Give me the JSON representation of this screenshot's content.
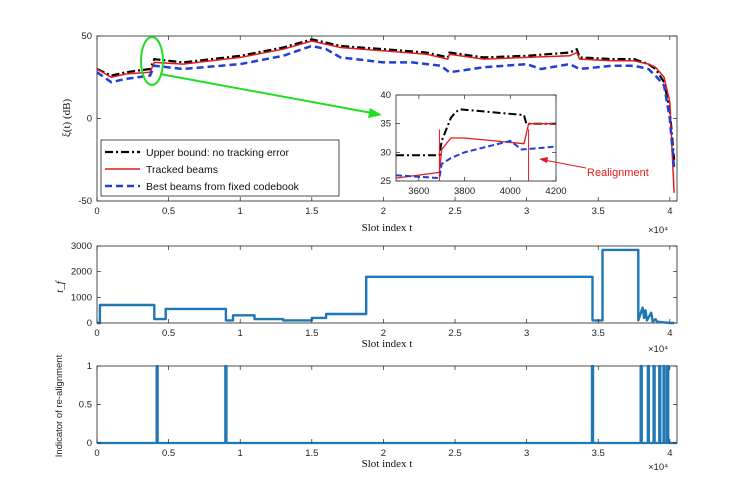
{
  "chart_data": [
    {
      "type": "line",
      "ylabel": "ξ(t) (dB)",
      "xlabel": "Slot index t",
      "x_exponent": "×10⁴",
      "xlim": [
        0,
        40500
      ],
      "ylim": [
        -50,
        50
      ],
      "xticks": [
        0,
        5000,
        10000,
        15000,
        20000,
        25000,
        30000,
        35000,
        40000
      ],
      "xtick_labels": [
        "0",
        "0.5",
        "1",
        "1.5",
        "2",
        "2.5",
        "3",
        "3.5",
        "4"
      ],
      "yticks": [
        -50,
        0,
        50
      ],
      "legend": [
        "Upper bound: no tracking error",
        "Tracked beams",
        "Best beams from fixed codebook"
      ],
      "series": [
        {
          "name": "Upper bound: no tracking error",
          "color": "#000000",
          "style": "dashdot",
          "x": [
            0,
            1000,
            2000,
            3700,
            4000,
            6000,
            10000,
            13000,
            15000,
            17000,
            20000,
            23000,
            24500,
            24600,
            27000,
            30000,
            33000,
            33500,
            33700,
            36000,
            37500,
            38500,
            39000,
            39600,
            40000,
            40300
          ],
          "y": [
            30,
            26,
            28,
            30,
            36,
            34,
            38,
            43,
            48,
            44,
            42,
            40,
            37,
            40,
            37,
            38,
            40,
            42,
            37,
            36,
            36,
            33,
            30,
            22,
            5,
            -25
          ]
        },
        {
          "name": "Tracked beams",
          "color": "#e41a1c",
          "style": "solid",
          "x": [
            0,
            1000,
            2000,
            3700,
            4000,
            6000,
            10000,
            13000,
            15000,
            17000,
            20000,
            23000,
            24500,
            24600,
            27000,
            30000,
            33000,
            33500,
            33700,
            36000,
            37500,
            38500,
            39000,
            39600,
            40000,
            40300
          ],
          "y": [
            30,
            25,
            27,
            28,
            34,
            33,
            37,
            42,
            47,
            43,
            41,
            39,
            36,
            39,
            36,
            37,
            38,
            40,
            36,
            35,
            35,
            33,
            31,
            25,
            10,
            -45
          ]
        },
        {
          "name": "Best beams from fixed codebook",
          "color": "#1f3fd6",
          "style": "dashed",
          "x": [
            0,
            1000,
            2000,
            3700,
            4000,
            6000,
            10000,
            13000,
            15000,
            16000,
            17000,
            20000,
            22000,
            24000,
            24600,
            27000,
            30000,
            31000,
            33000,
            33700,
            36000,
            37500,
            38500,
            39000,
            39600,
            40000,
            40300
          ],
          "y": [
            28,
            22,
            24,
            26,
            32,
            30,
            33,
            38,
            44,
            42,
            37,
            34,
            34,
            32,
            28,
            31,
            33,
            30,
            33,
            30,
            32,
            32,
            30,
            26,
            20,
            0,
            -30
          ]
        }
      ],
      "inset": {
        "xlim": [
          3500,
          4200
        ],
        "ylim": [
          25,
          40
        ],
        "xticks": [
          3600,
          3800,
          4000,
          4200
        ],
        "xtick_labels": [
          "3600",
          "3800",
          "4000",
          "4200"
        ],
        "yticks": [
          25,
          30,
          35,
          40
        ],
        "ytick_labels": [
          "25",
          "30",
          "35",
          "40"
        ],
        "annotation": "Realignment",
        "series": [
          {
            "name": "Upper bound",
            "x": [
              3500,
              3690,
              3700,
              3720,
              3740,
              3760,
              3780,
              4060,
              4070,
              4200
            ],
            "y": [
              29.5,
              29.5,
              32,
              34,
              36,
              37,
              37.5,
              36.5,
              35,
              35
            ]
          },
          {
            "name": "Tracked",
            "x": [
              3500,
              3690,
              3700,
              3740,
              3800,
              4060,
              4080,
              4200
            ],
            "y": [
              25.5,
              26.5,
              30.5,
              32.5,
              32.5,
              31.5,
              35,
              35
            ]
          },
          {
            "name": "Fixed codebook",
            "x": [
              3500,
              3690,
              3700,
              3740,
              3800,
              3900,
              4000,
              4050,
              4200
            ],
            "y": [
              26,
              25.5,
              28,
              29,
              30,
              31,
              32,
              30.5,
              31
            ]
          }
        ]
      }
    },
    {
      "type": "line",
      "ylabel": "t_f",
      "xlabel": "Slot index t",
      "x_exponent": "×10⁴",
      "xlim": [
        0,
        40500
      ],
      "ylim": [
        0,
        3000
      ],
      "yticks": [
        0,
        1000,
        2000,
        3000
      ],
      "ytick_labels": [
        "0",
        "1000",
        "2000",
        "3000"
      ],
      "xticks": [
        0,
        5000,
        10000,
        15000,
        20000,
        25000,
        30000,
        35000,
        40000
      ],
      "xtick_labels": [
        "0",
        "0.5",
        "1",
        "1.5",
        "2",
        "2.5",
        "3",
        "3.5",
        "4"
      ],
      "series": [
        {
          "name": "t_f",
          "color": "#1f77b4",
          "x": [
            0,
            200,
            200,
            4000,
            4000,
            4800,
            4800,
            9000,
            9000,
            9500,
            9500,
            11000,
            11000,
            13000,
            13000,
            15000,
            15000,
            16000,
            16000,
            18800,
            18800,
            34600,
            34600,
            35300,
            35300,
            37800,
            37800,
            38100,
            38200,
            38300,
            38400,
            38700,
            38800,
            39000,
            39100,
            40000,
            40300
          ],
          "y": [
            0,
            0,
            700,
            700,
            150,
            150,
            550,
            550,
            100,
            100,
            300,
            300,
            150,
            150,
            100,
            100,
            200,
            200,
            350,
            350,
            1800,
            1800,
            100,
            100,
            2850,
            2850,
            100,
            600,
            200,
            500,
            100,
            400,
            50,
            150,
            50,
            0,
            0
          ]
        }
      ]
    },
    {
      "type": "line",
      "ylabel": "Indicator of re-alignment",
      "xlabel": "Slot index t",
      "x_exponent": "×10⁴",
      "xlim": [
        0,
        40500
      ],
      "ylim": [
        0,
        1
      ],
      "yticks": [
        0,
        0.5,
        1
      ],
      "ytick_labels": [
        "0",
        "0.5",
        "1"
      ],
      "xticks": [
        0,
        5000,
        10000,
        15000,
        20000,
        25000,
        30000,
        35000,
        40000
      ],
      "xtick_labels": [
        "0",
        "0.5",
        "1",
        "1.5",
        "2",
        "2.5",
        "3",
        "3.5",
        "4"
      ],
      "spikes": [
        4200,
        9000,
        34600,
        38000,
        38500,
        38900,
        39300,
        39600,
        39850
      ],
      "series": [
        {
          "name": "indicator",
          "color": "#1f77b4"
        }
      ]
    }
  ]
}
